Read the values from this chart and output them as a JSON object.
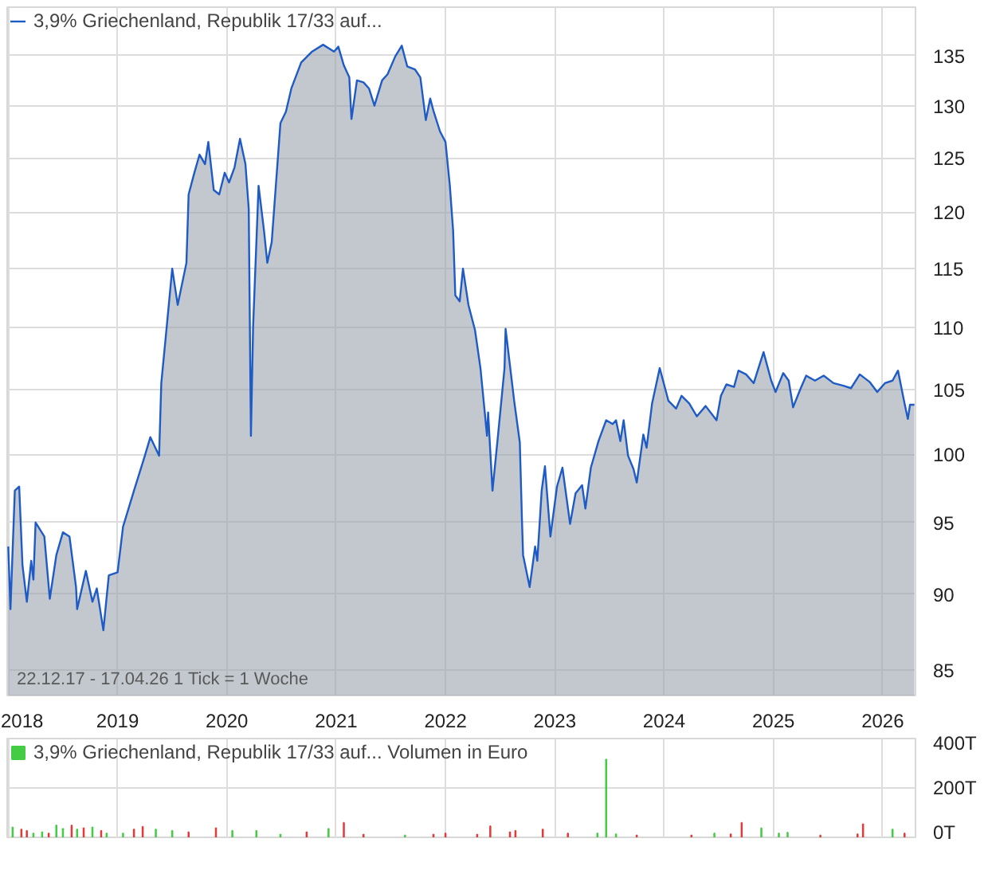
{
  "chart_data": [
    {
      "type": "area",
      "legend": "top left",
      "log": true,
      "grid": true,
      "annotations": [
        "22.12.17 - 17.04.26   1 Tick = 1 Woche"
      ],
      "xlim": [
        2017.99,
        2026.3
      ],
      "xticks": [
        2018,
        2019,
        2020,
        2021,
        2022,
        2023,
        2024,
        2025,
        2026
      ],
      "ylim": [
        83.4,
        140
      ],
      "yticks": [
        85,
        90,
        95,
        100,
        105,
        110,
        115,
        120,
        125,
        130,
        135
      ],
      "x": [
        2018.0,
        2018.02,
        2018.06,
        2018.1,
        2018.13,
        2018.17,
        2018.21,
        2018.23,
        2018.25,
        2018.33,
        2018.38,
        2018.44,
        2018.5,
        2018.56,
        2018.62,
        2018.63,
        2018.71,
        2018.77,
        2018.81,
        2018.87,
        2018.92,
        2019.0,
        2019.05,
        2019.15,
        2019.25,
        2019.3,
        2019.38,
        2019.4,
        2019.45,
        2019.5,
        2019.55,
        2019.63,
        2019.65,
        2019.7,
        2019.75,
        2019.8,
        2019.83,
        2019.88,
        2019.93,
        2019.98,
        2020.02,
        2020.07,
        2020.12,
        2020.17,
        2020.2,
        2020.22,
        2020.24,
        2020.29,
        2020.34,
        2020.37,
        2020.41,
        2020.49,
        2020.54,
        2020.59,
        2020.68,
        2020.78,
        2020.88,
        2020.98,
        2021.02,
        2021.07,
        2021.12,
        2021.14,
        2021.19,
        2021.25,
        2021.3,
        2021.35,
        2021.42,
        2021.47,
        2021.54,
        2021.6,
        2021.65,
        2021.72,
        2021.77,
        2021.82,
        2021.86,
        2021.89,
        2021.95,
        2022.0,
        2022.04,
        2022.07,
        2022.09,
        2022.13,
        2022.16,
        2022.21,
        2022.27,
        2022.32,
        2022.38,
        2022.39,
        2022.43,
        2022.48,
        2022.54,
        2022.55,
        2022.63,
        2022.68,
        2022.7,
        2022.71,
        2022.77,
        2022.82,
        2022.84,
        2022.88,
        2022.91,
        2022.96,
        2023.02,
        2023.07,
        2023.14,
        2023.19,
        2023.25,
        2023.28,
        2023.33,
        2023.4,
        2023.47,
        2023.53,
        2023.56,
        2023.6,
        2023.63,
        2023.67,
        2023.72,
        2023.75,
        2023.81,
        2023.84,
        2023.89,
        2023.96,
        2024.04,
        2024.11,
        2024.16,
        2024.23,
        2024.3,
        2024.38,
        2024.48,
        2024.52,
        2024.57,
        2024.64,
        2024.68,
        2024.75,
        2024.82,
        2024.91,
        2024.98,
        2025.02,
        2025.09,
        2025.14,
        2025.18,
        2025.25,
        2025.3,
        2025.38,
        2025.46,
        2025.55,
        2025.64,
        2025.71,
        2025.79,
        2025.88,
        2025.95,
        2026.02,
        2026.09,
        2026.14,
        2026.2,
        2026.23,
        2026.25,
        2026.29
      ],
      "series": [
        {
          "name": "3,9% Griechenland, Republik 17/33 auf...",
          "color": "#1f5bc6",
          "values": [
            93.3,
            89,
            97.3,
            97.6,
            92,
            89.5,
            92.3,
            91,
            95,
            94,
            89.7,
            92.7,
            94.3,
            94,
            90.5,
            89,
            91.6,
            89.5,
            90.4,
            87.6,
            91.3,
            91.5,
            94.7,
            97.3,
            99.9,
            101.3,
            99.9,
            105.5,
            110.1,
            115,
            111.9,
            115.5,
            121.6,
            123.5,
            125.3,
            124.4,
            126.5,
            122,
            121.6,
            123.6,
            122.7,
            124.1,
            126.8,
            124.4,
            120.3,
            101.4,
            110.1,
            122.4,
            118.3,
            115.5,
            117.3,
            128.3,
            129.4,
            131.7,
            134.3,
            135.4,
            136.1,
            135.4,
            135.9,
            134,
            132.8,
            128.7,
            132.5,
            132.3,
            131.7,
            130,
            132.5,
            133.1,
            134.9,
            136,
            133.9,
            133.6,
            132.8,
            128.6,
            130.7,
            129.5,
            127.5,
            126.5,
            122.4,
            118.3,
            112.7,
            112.2,
            115,
            111.9,
            109.8,
            106.7,
            101.4,
            103.2,
            97.3,
            101.4,
            106.7,
            109.9,
            104,
            100.9,
            95.1,
            92.7,
            90.5,
            93.3,
            92.3,
            97.3,
            99.1,
            94,
            97.6,
            99,
            94.9,
            97.1,
            97.7,
            96,
            99,
            101,
            102.6,
            102.3,
            102.6,
            101,
            102.6,
            99.9,
            98.9,
            97.9,
            101.5,
            100.5,
            103.9,
            106.7,
            104.1,
            103.5,
            104.5,
            103.9,
            102.9,
            103.7,
            102.6,
            104.5,
            105.4,
            105.2,
            106.5,
            106.2,
            105.5,
            108,
            105.7,
            104.8,
            106.3,
            105.7,
            103.6,
            105.1,
            106.1,
            105.7,
            106.1,
            105.5,
            105.3,
            105.1,
            106.2,
            105.6,
            104.8,
            105.5,
            105.7,
            106.5,
            103.9,
            102.7,
            103.8,
            103.8
          ]
        }
      ]
    },
    {
      "type": "bar",
      "legend": "top left",
      "grid": true,
      "tick_labels": "y",
      "xlim": [
        2017.99,
        2026.3
      ],
      "xticks": [
        {
          "value": 2018,
          "label": null
        },
        {
          "value": 2019,
          "label": null
        },
        {
          "value": 2020,
          "label": null
        },
        {
          "value": 2021,
          "label": null
        },
        {
          "value": 2022,
          "label": null
        },
        {
          "value": 2023,
          "label": null
        },
        {
          "value": 2024,
          "label": null
        },
        {
          "value": 2025,
          "label": null
        },
        {
          "value": 2026,
          "label": null
        }
      ],
      "ylim": [
        0,
        400
      ],
      "yticks": [
        {
          "value": 0,
          "label": "0T"
        },
        {
          "value": 200,
          "label": "200T"
        },
        {
          "value": 400,
          "label": "400T"
        }
      ],
      "x": [
        2018.04,
        2018.12,
        2018.17,
        2018.23,
        2018.31,
        2018.37,
        2018.44,
        2018.5,
        2018.58,
        2018.63,
        2018.69,
        2018.77,
        2018.85,
        2018.9,
        2019.05,
        2019.15,
        2019.23,
        2019.35,
        2019.5,
        2019.65,
        2019.9,
        2020.05,
        2020.27,
        2020.49,
        2020.73,
        2020.93,
        2021.07,
        2021.25,
        2021.63,
        2021.89,
        2022.0,
        2022.29,
        2022.41,
        2022.59,
        2022.64,
        2022.89,
        2023.12,
        2023.39,
        2023.47,
        2023.56,
        2023.75,
        2024.25,
        2024.46,
        2024.61,
        2024.71,
        2024.89,
        2025.05,
        2025.13,
        2025.43,
        2025.77,
        2025.82,
        2026.09,
        2026.2
      ],
      "series": [
        {
          "name": "3,9% Griechenland, Republik 17/33 auf... Volumen in Euro",
          "values": [
            40,
            32,
            27,
            16,
            21,
            16,
            48,
            35,
            48,
            32,
            37,
            40,
            27,
            16,
            16,
            32,
            43,
            32,
            27,
            21,
            37,
            27,
            27,
            11,
            21,
            35,
            59,
            11,
            8,
            11,
            16,
            11,
            45,
            21,
            27,
            32,
            16,
            16,
            315,
            13,
            8,
            8,
            16,
            13,
            59,
            37,
            16,
            19,
            8,
            13,
            53,
            32,
            16
          ],
          "colors": [
            "#44cc44",
            "#e03c3c",
            "#e03c3c",
            "#44cc44",
            "#44cc44",
            "#e03c3c",
            "#44cc44",
            "#44cc44",
            "#e03c3c",
            "#44cc44",
            "#e03c3c",
            "#44cc44",
            "#e03c3c",
            "#44cc44",
            "#44cc44",
            "#e03c3c",
            "#e03c3c",
            "#44cc44",
            "#44cc44",
            "#e03c3c",
            "#e03c3c",
            "#44cc44",
            "#44cc44",
            "#44cc44",
            "#e03c3c",
            "#44cc44",
            "#e03c3c",
            "#e03c3c",
            "#44cc44",
            "#e03c3c",
            "#e03c3c",
            "#e03c3c",
            "#e03c3c",
            "#e03c3c",
            "#e03c3c",
            "#e03c3c",
            "#e03c3c",
            "#44cc44",
            "#44cc44",
            "#44cc44",
            "#e03c3c",
            "#e03c3c",
            "#44cc44",
            "#e03c3c",
            "#e03c3c",
            "#44cc44",
            "#44cc44",
            "#44cc44",
            "#e03c3c",
            "#e03c3c",
            "#e03c3c",
            "#44cc44",
            "#e03c3c"
          ]
        }
      ]
    }
  ]
}
